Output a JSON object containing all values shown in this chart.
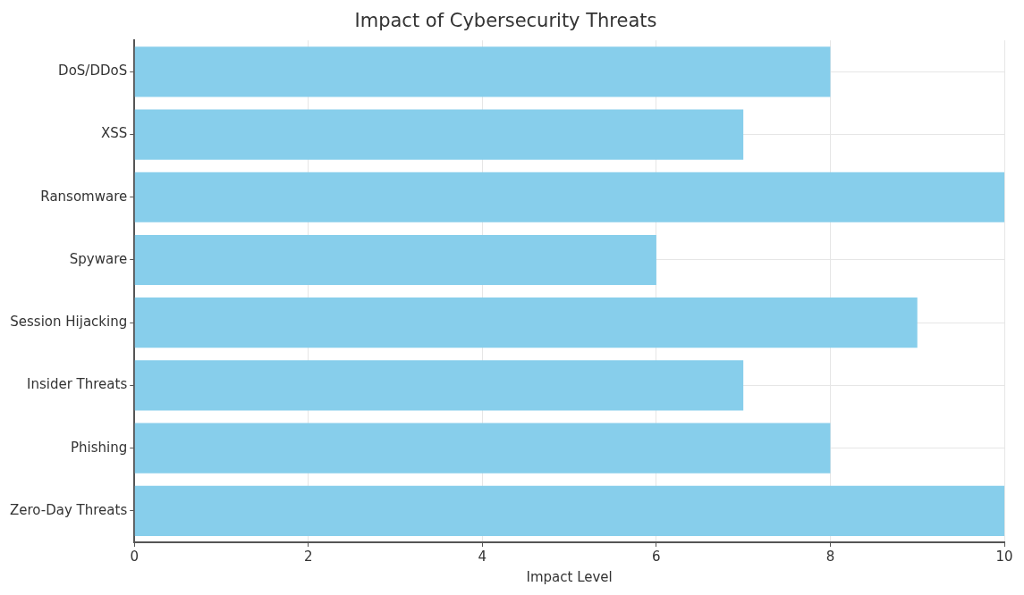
{
  "chart_data": {
    "type": "bar",
    "title": "Impact of Cybersecurity Threats",
    "xlabel": "Impact Level",
    "orientation": "horizontal",
    "categories": [
      "DoS/DDoS",
      "XSS",
      "Ransomware",
      "Spyware",
      "Session Hijacking",
      "Insider Threats",
      "Phishing",
      "Zero-Day Threats"
    ],
    "values": [
      8,
      7,
      10,
      6,
      9,
      7,
      8,
      10
    ],
    "color": "#87ceeb",
    "xlim": [
      0,
      10
    ],
    "xticks": [
      0,
      2,
      4,
      6,
      8,
      10
    ],
    "grid": true
  }
}
